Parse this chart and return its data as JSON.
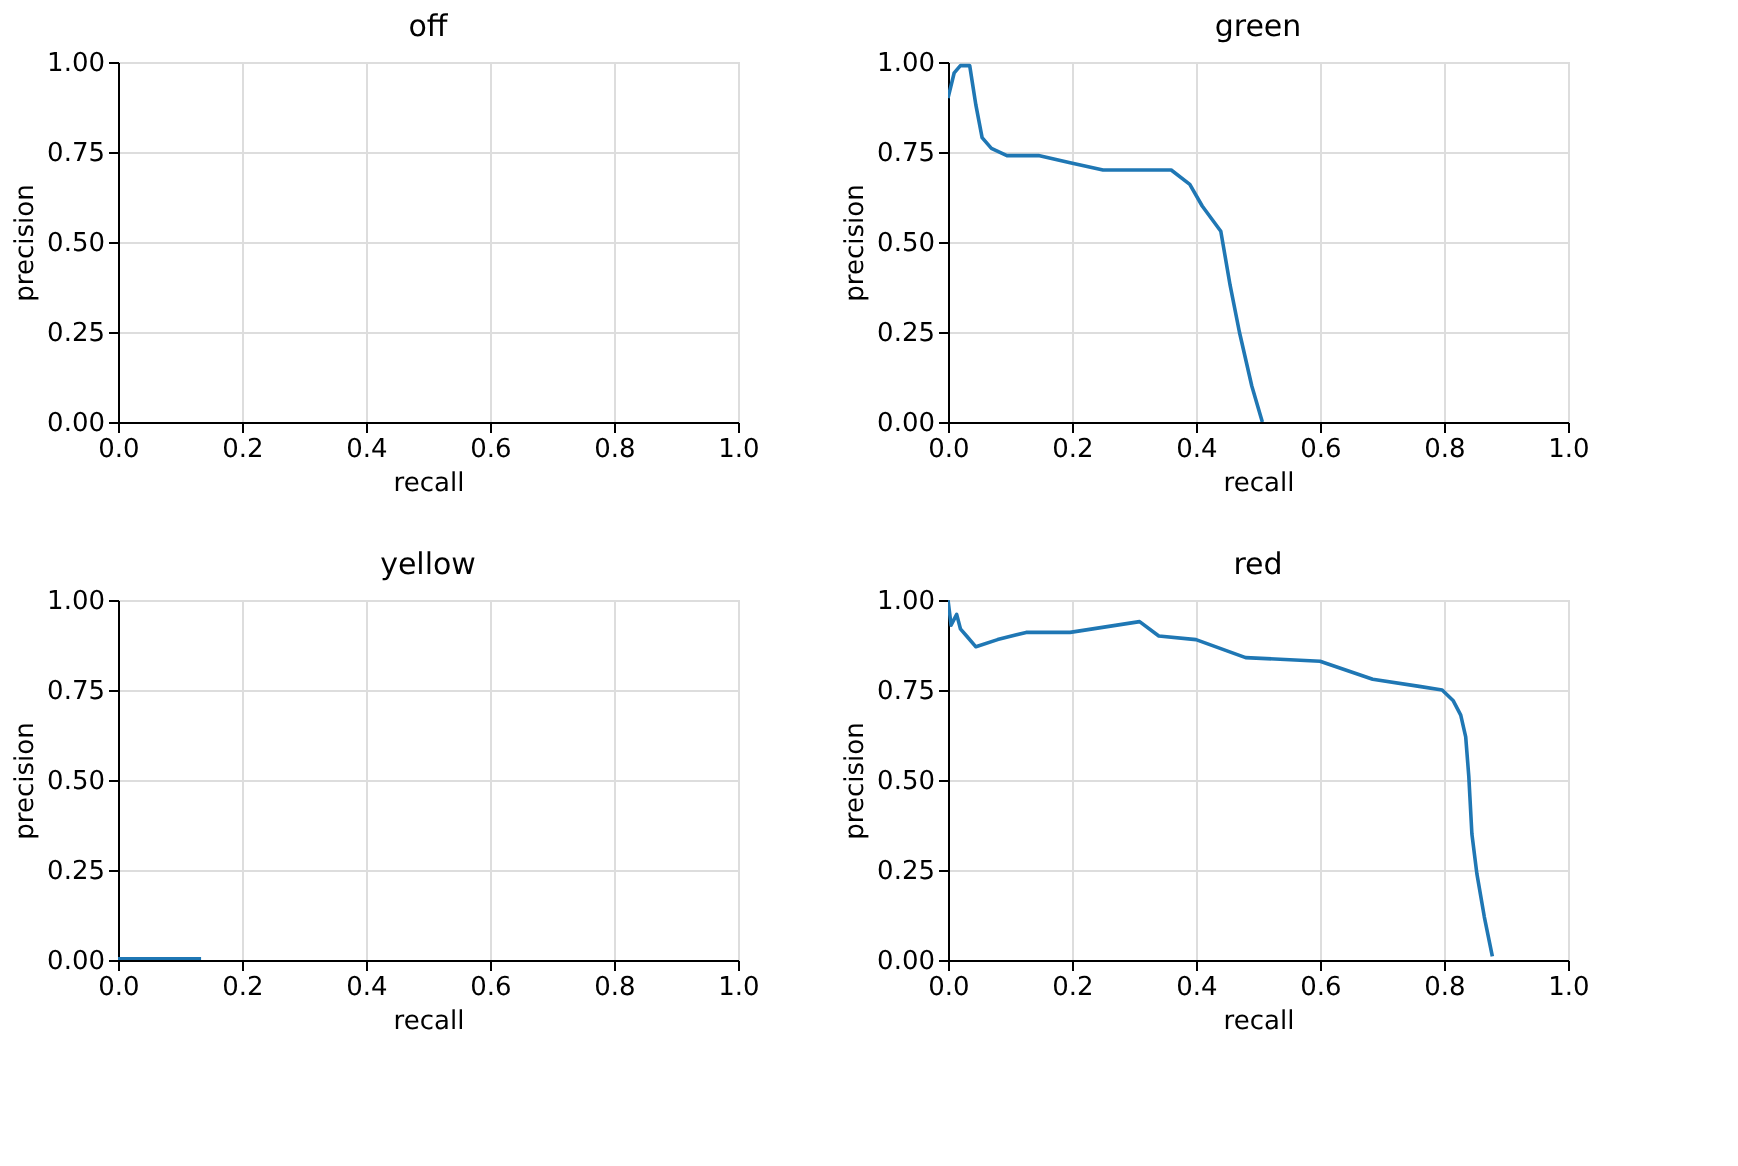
{
  "chart_data": [
    {
      "type": "line",
      "title": "off",
      "xlabel": "recall",
      "ylabel": "precision",
      "xlim": [
        0,
        1
      ],
      "ylim": [
        0,
        1
      ],
      "xticks": [
        {
          "value": 0,
          "label": "0.0"
        },
        {
          "value": 0.2,
          "label": "0.2"
        },
        {
          "value": 0.4,
          "label": "0.4"
        },
        {
          "value": 0.6,
          "label": "0.6"
        },
        {
          "value": 0.8,
          "label": "0.8"
        },
        {
          "value": 1,
          "label": "1.0"
        }
      ],
      "yticks": [
        {
          "value": 0,
          "label": "0.00"
        },
        {
          "value": 0.25,
          "label": "0.25"
        },
        {
          "value": 0.5,
          "label": "0.50"
        },
        {
          "value": 0.75,
          "label": "0.75"
        },
        {
          "value": 1,
          "label": "1.00"
        }
      ],
      "grid": true
    },
    {
      "type": "line",
      "title": "green",
      "xlabel": "recall",
      "ylabel": "precision",
      "xlim": [
        0,
        1
      ],
      "ylim": [
        0,
        1
      ],
      "xticks": [
        {
          "value": 0,
          "label": "0.0"
        },
        {
          "value": 0.2,
          "label": "0.2"
        },
        {
          "value": 0.4,
          "label": "0.4"
        },
        {
          "value": 0.6,
          "label": "0.6"
        },
        {
          "value": 0.8,
          "label": "0.8"
        },
        {
          "value": 1,
          "label": "1.0"
        }
      ],
      "yticks": [
        {
          "value": 0,
          "label": "0.00"
        },
        {
          "value": 0.25,
          "label": "0.25"
        },
        {
          "value": 0.5,
          "label": "0.50"
        },
        {
          "value": 0.75,
          "label": "0.75"
        },
        {
          "value": 1,
          "label": "1.00"
        }
      ],
      "grid": true,
      "line_style": "solid",
      "marker": "none",
      "series": [
        {
          "color": "#1f77b4",
          "x": [
            0.0,
            0.01,
            0.02,
            0.035,
            0.045,
            0.055,
            0.07,
            0.095,
            0.146,
            0.197,
            0.25,
            0.3,
            0.36,
            0.39,
            0.41,
            0.44,
            0.455,
            0.47,
            0.49,
            0.507
          ],
          "values": [
            0.9,
            0.97,
            0.99,
            0.99,
            0.88,
            0.79,
            0.76,
            0.74,
            0.74,
            0.72,
            0.7,
            0.7,
            0.7,
            0.66,
            0.6,
            0.53,
            0.38,
            0.25,
            0.1,
            0.0
          ]
        }
      ]
    },
    {
      "type": "line",
      "title": "yellow",
      "xlabel": "recall",
      "ylabel": "precision",
      "xlim": [
        0,
        1
      ],
      "ylim": [
        0,
        1
      ],
      "xticks": [
        {
          "value": 0,
          "label": "0.0"
        },
        {
          "value": 0.2,
          "label": "0.2"
        },
        {
          "value": 0.4,
          "label": "0.4"
        },
        {
          "value": 0.6,
          "label": "0.6"
        },
        {
          "value": 0.8,
          "label": "0.8"
        },
        {
          "value": 1,
          "label": "1.0"
        }
      ],
      "yticks": [
        {
          "value": 0,
          "label": "0.00"
        },
        {
          "value": 0.25,
          "label": "0.25"
        },
        {
          "value": 0.5,
          "label": "0.50"
        },
        {
          "value": 0.75,
          "label": "0.75"
        },
        {
          "value": 1,
          "label": "1.00"
        }
      ],
      "grid": true,
      "line_style": "solid",
      "marker": "none",
      "series": [
        {
          "color": "#1f77b4",
          "x": [
            0.0,
            0.134
          ],
          "values": [
            0.003,
            0.003
          ]
        }
      ]
    },
    {
      "type": "line",
      "title": "red",
      "xlabel": "recall",
      "ylabel": "precision",
      "xlim": [
        0,
        1
      ],
      "ylim": [
        0,
        1
      ],
      "xticks": [
        {
          "value": 0,
          "label": "0.0"
        },
        {
          "value": 0.2,
          "label": "0.2"
        },
        {
          "value": 0.4,
          "label": "0.4"
        },
        {
          "value": 0.6,
          "label": "0.6"
        },
        {
          "value": 0.8,
          "label": "0.8"
        },
        {
          "value": 1,
          "label": "1.0"
        }
      ],
      "yticks": [
        {
          "value": 0,
          "label": "0.00"
        },
        {
          "value": 0.25,
          "label": "0.25"
        },
        {
          "value": 0.5,
          "label": "0.50"
        },
        {
          "value": 0.75,
          "label": "0.75"
        },
        {
          "value": 1,
          "label": "1.00"
        }
      ],
      "grid": true,
      "line_style": "solid",
      "marker": "none",
      "series": [
        {
          "color": "#1f77b4",
          "x": [
            0.0,
            0.005,
            0.014,
            0.02,
            0.03,
            0.045,
            0.08,
            0.126,
            0.197,
            0.309,
            0.34,
            0.4,
            0.48,
            0.6,
            0.685,
            0.76,
            0.797,
            0.815,
            0.827,
            0.835,
            0.84,
            0.845,
            0.853,
            0.865,
            0.878
          ],
          "values": [
            1.0,
            0.93,
            0.96,
            0.92,
            0.9,
            0.87,
            0.89,
            0.91,
            0.91,
            0.94,
            0.9,
            0.89,
            0.84,
            0.83,
            0.78,
            0.76,
            0.75,
            0.72,
            0.68,
            0.62,
            0.51,
            0.35,
            0.24,
            0.12,
            0.01
          ]
        }
      ]
    }
  ]
}
